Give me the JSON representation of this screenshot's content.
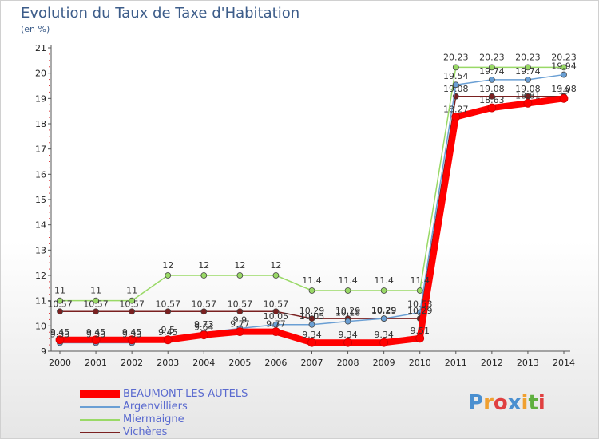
{
  "chart_data": {
    "type": "line",
    "title": "Evolution du Taux de Taxe d'Habitation",
    "ylabel": "(en %)",
    "xlabel": "",
    "x": [
      "2000",
      "2001",
      "2002",
      "2003",
      "2004",
      "2005",
      "2006",
      "2007",
      "2008",
      "2009",
      "2010",
      "2011",
      "2012",
      "2013",
      "2014"
    ],
    "ylim": [
      9,
      21
    ],
    "yticks": [
      "9",
      "10",
      "11",
      "12",
      "13",
      "14",
      "15",
      "16",
      "17",
      "18",
      "19",
      "20",
      "21"
    ],
    "grid": false,
    "legend_position": "bottom-left",
    "series": [
      {
        "name": "BEAUMONT-LES-AUTELS",
        "color": "#ff0000",
        "values": [
          9.45,
          9.45,
          9.45,
          9.45,
          9.64,
          9.77,
          9.77,
          9.34,
          9.34,
          9.34,
          9.51,
          18.27,
          18.63,
          18.81,
          19.0
        ],
        "labels": [
          "9.45",
          "9.45",
          "9.45",
          "9.45",
          "9.64",
          "9.77",
          "9.77",
          "9.34",
          "9.34",
          "9.34",
          "9.51",
          "18.27",
          "18.63",
          "18.81",
          "19"
        ]
      },
      {
        "name": "Argenvilliers",
        "color": "#6a9fd4",
        "values": [
          9.33,
          9.33,
          9.33,
          9.5,
          9.73,
          9.9,
          10.05,
          10.05,
          10.18,
          10.29,
          10.53,
          19.54,
          19.74,
          19.74,
          19.94
        ],
        "labels": [
          "9.33",
          "9.33",
          "9.33",
          "9.5",
          "9.73",
          "9.9",
          "10.05",
          "10.05",
          "10.18",
          "10.29",
          "10.53",
          "19.54",
          "19.74",
          "19.74",
          "19.94"
        ]
      },
      {
        "name": "Miermaigne",
        "color": "#99d966",
        "values": [
          11.0,
          11.0,
          11.0,
          12.0,
          12.0,
          12.0,
          12.0,
          11.4,
          11.4,
          11.4,
          11.4,
          20.23,
          20.23,
          20.23,
          20.23
        ],
        "labels": [
          "11",
          "11",
          "11",
          "12",
          "12",
          "12",
          "12",
          "11.4",
          "11.4",
          "11.4",
          "11.4",
          "20.23",
          "20.23",
          "20.23",
          "20.23"
        ]
      },
      {
        "name": "Vichères",
        "color": "#7a2020",
        "values": [
          10.57,
          10.57,
          10.57,
          10.57,
          10.57,
          10.57,
          10.57,
          10.29,
          10.29,
          10.29,
          10.29,
          19.08,
          19.08,
          19.08,
          19.08
        ],
        "labels": [
          "10.57",
          "10.57",
          "10.57",
          "10.57",
          "10.57",
          "10.57",
          "10.57",
          "10.29",
          "10.29",
          "10.29",
          "10.29",
          "19.08",
          "19.08",
          "19.08",
          "19.08"
        ]
      }
    ]
  },
  "logo": {
    "letters": [
      "P",
      "r",
      "o",
      "x",
      "i",
      "t",
      "i"
    ],
    "colors": [
      "#4a8fd0",
      "#f0a030",
      "#e04040",
      "#4a8fd0",
      "#f0a030",
      "#60b040",
      "#e04040"
    ]
  }
}
